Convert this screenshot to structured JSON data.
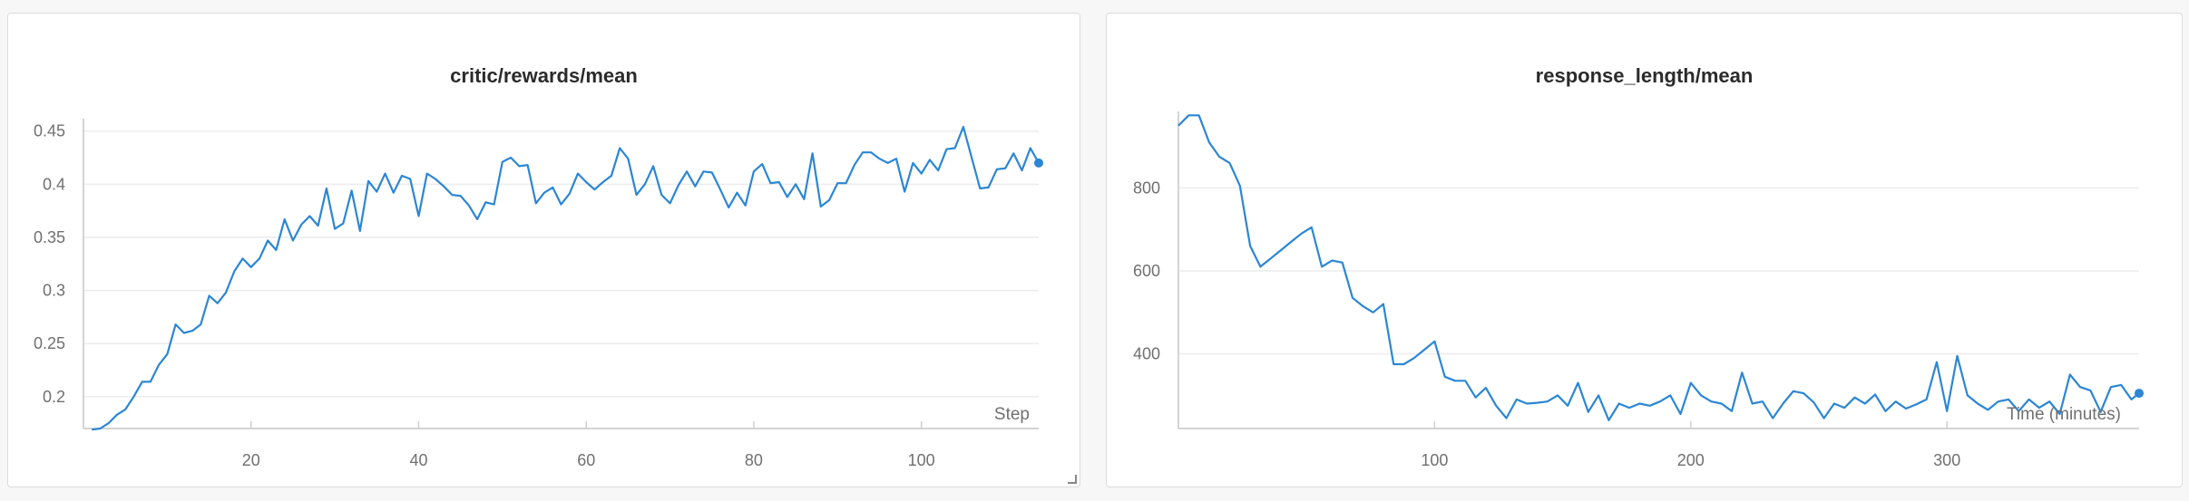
{
  "chart_data": [
    {
      "type": "line",
      "title": "critic/rewards/mean",
      "xlabel": "Step",
      "ylabel": "",
      "xlim": [
        0,
        114
      ],
      "ylim": [
        0.17,
        0.46
      ],
      "xticks": [
        20,
        40,
        60,
        80,
        100
      ],
      "yticks": [
        0.2,
        0.25,
        0.3,
        0.35,
        0.4,
        0.45
      ],
      "ytick_labels": [
        "0.2",
        "0.25",
        "0.3",
        "0.35",
        "0.4",
        "0.45"
      ],
      "grid": true,
      "series": [
        {
          "color": "#2b86d4",
          "x": [
            1,
            2,
            3,
            4,
            5,
            6,
            7,
            8,
            9,
            10,
            11,
            12,
            13,
            14,
            15,
            16,
            17,
            18,
            19,
            20,
            21,
            22,
            23,
            24,
            25,
            26,
            27,
            28,
            29,
            30,
            31,
            32,
            33,
            34,
            35,
            36,
            37,
            38,
            39,
            40,
            41,
            42,
            43,
            44,
            45,
            46,
            47,
            48,
            49,
            50,
            51,
            52,
            53,
            54,
            55,
            56,
            57,
            58,
            59,
            60,
            61,
            62,
            63,
            64,
            65,
            66,
            67,
            68,
            69,
            70,
            71,
            72,
            73,
            74,
            75,
            76,
            77,
            78,
            79,
            80,
            81,
            82,
            83,
            84,
            85,
            86,
            87,
            88,
            89,
            90,
            91,
            92,
            93,
            94,
            95,
            96,
            97,
            98,
            99,
            100,
            101,
            102,
            103,
            104,
            105,
            106,
            107,
            108,
            109,
            110,
            111,
            112,
            113,
            114
          ],
          "y": [
            0.169,
            0.17,
            0.175,
            0.183,
            0.188,
            0.2,
            0.214,
            0.214,
            0.23,
            0.24,
            0.268,
            0.26,
            0.262,
            0.268,
            0.295,
            0.288,
            0.298,
            0.318,
            0.33,
            0.322,
            0.33,
            0.347,
            0.338,
            0.367,
            0.347,
            0.362,
            0.37,
            0.361,
            0.396,
            0.358,
            0.363,
            0.394,
            0.356,
            0.403,
            0.393,
            0.41,
            0.392,
            0.408,
            0.405,
            0.37,
            0.41,
            0.405,
            0.398,
            0.39,
            0.389,
            0.38,
            0.367,
            0.383,
            0.381,
            0.421,
            0.425,
            0.417,
            0.418,
            0.382,
            0.392,
            0.397,
            0.381,
            0.391,
            0.41,
            0.402,
            0.395,
            0.402,
            0.408,
            0.434,
            0.424,
            0.39,
            0.4,
            0.417,
            0.39,
            0.382,
            0.399,
            0.412,
            0.398,
            0.412,
            0.411,
            0.395,
            0.378,
            0.392,
            0.38,
            0.412,
            0.419,
            0.401,
            0.402,
            0.388,
            0.4,
            0.386,
            0.429,
            0.379,
            0.385,
            0.401,
            0.401,
            0.418,
            0.43,
            0.43,
            0.424,
            0.42,
            0.424,
            0.393,
            0.42,
            0.41,
            0.423,
            0.413,
            0.433,
            0.434,
            0.454,
            0.425,
            0.396,
            0.397,
            0.414,
            0.415,
            0.429,
            0.413,
            0.434,
            0.42
          ]
        }
      ],
      "annotations": [
        {
          "text": "Step"
        }
      ]
    },
    {
      "type": "line",
      "title": "response_length/mean",
      "xlabel": "Time (minutes)",
      "ylabel": "",
      "xlim": [
        0,
        375
      ],
      "ylim": [
        220,
        980
      ],
      "xticks": [
        100,
        200,
        300
      ],
      "yticks": [
        400,
        600,
        800
      ],
      "ytick_labels": [
        "400",
        "600",
        "800"
      ],
      "grid": true,
      "series": [
        {
          "color": "#2b86d4",
          "x": [
            0,
            4,
            8,
            12,
            16,
            20,
            24,
            28,
            32,
            36,
            40,
            44,
            48,
            52,
            56,
            60,
            64,
            68,
            72,
            76,
            80,
            84,
            88,
            92,
            96,
            100,
            104,
            108,
            112,
            116,
            120,
            124,
            128,
            132,
            136,
            140,
            144,
            148,
            152,
            156,
            160,
            164,
            168,
            172,
            176,
            180,
            184,
            188,
            192,
            196,
            200,
            204,
            208,
            212,
            216,
            220,
            224,
            228,
            232,
            236,
            240,
            244,
            248,
            252,
            256,
            260,
            264,
            268,
            272,
            276,
            280,
            284,
            288,
            292,
            296,
            300,
            304,
            308,
            312,
            316,
            320,
            324,
            328,
            332,
            336,
            340,
            344,
            348,
            352,
            356,
            360,
            364,
            368,
            372,
            375
          ],
          "y": [
            950,
            975,
            975,
            910,
            875,
            860,
            805,
            660,
            610,
            630,
            650,
            670,
            690,
            705,
            610,
            625,
            620,
            535,
            515,
            500,
            520,
            375,
            375,
            390,
            410,
            430,
            345,
            335,
            335,
            295,
            318,
            275,
            245,
            290,
            280,
            282,
            285,
            300,
            275,
            330,
            260,
            300,
            240,
            280,
            270,
            280,
            275,
            285,
            300,
            255,
            330,
            300,
            285,
            280,
            262,
            355,
            280,
            285,
            245,
            280,
            310,
            305,
            283,
            245,
            280,
            270,
            295,
            280,
            302,
            262,
            285,
            268,
            278,
            290,
            380,
            262,
            395,
            300,
            280,
            265,
            285,
            290,
            262,
            290,
            270,
            285,
            255,
            350,
            320,
            312,
            260,
            320,
            325,
            290,
            305
          ]
        }
      ],
      "annotations": [
        {
          "text": "Time (minutes)"
        }
      ]
    }
  ]
}
